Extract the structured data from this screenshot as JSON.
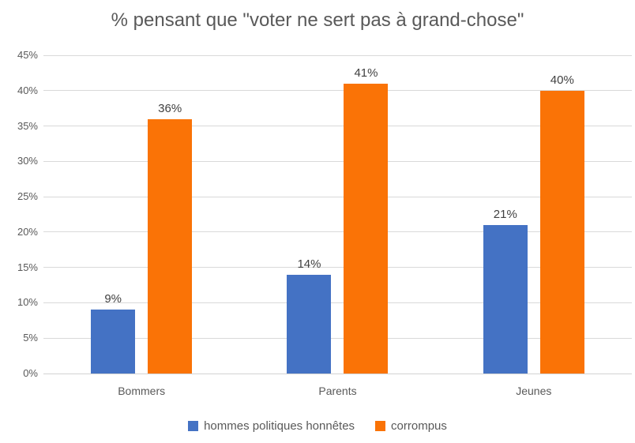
{
  "chart_data": {
    "type": "bar",
    "title": "% pensant que \"voter ne sert pas à grand-chose\"",
    "categories": [
      "Bommers",
      "Parents",
      "Jeunes"
    ],
    "series": [
      {
        "name": "hommes politiques honnêtes",
        "color": "#4472C4",
        "values": [
          9,
          14,
          21
        ],
        "labels": [
          "9%",
          "14%",
          "21%"
        ]
      },
      {
        "name": "corrompus",
        "color": "#FA7306",
        "values": [
          36,
          41,
          40
        ],
        "labels": [
          "36%",
          "41%",
          "40%"
        ]
      }
    ],
    "xlabel": "",
    "ylabel": "",
    "ylim": [
      0,
      45
    ],
    "ytick_step": 5,
    "ytick_labels": [
      "0%",
      "5%",
      "10%",
      "15%",
      "20%",
      "25%",
      "30%",
      "35%",
      "40%",
      "45%"
    ],
    "grid": true,
    "legend_position": "bottom",
    "colors": {
      "title_text": "#595959",
      "axis_text": "#595959",
      "category_text": "#595959",
      "data_label_text": "#404040",
      "legend_text": "#595959",
      "gridline": "#D9D9D9",
      "axis_line": "#D2D2D2",
      "background": "#FFFFFF"
    }
  }
}
